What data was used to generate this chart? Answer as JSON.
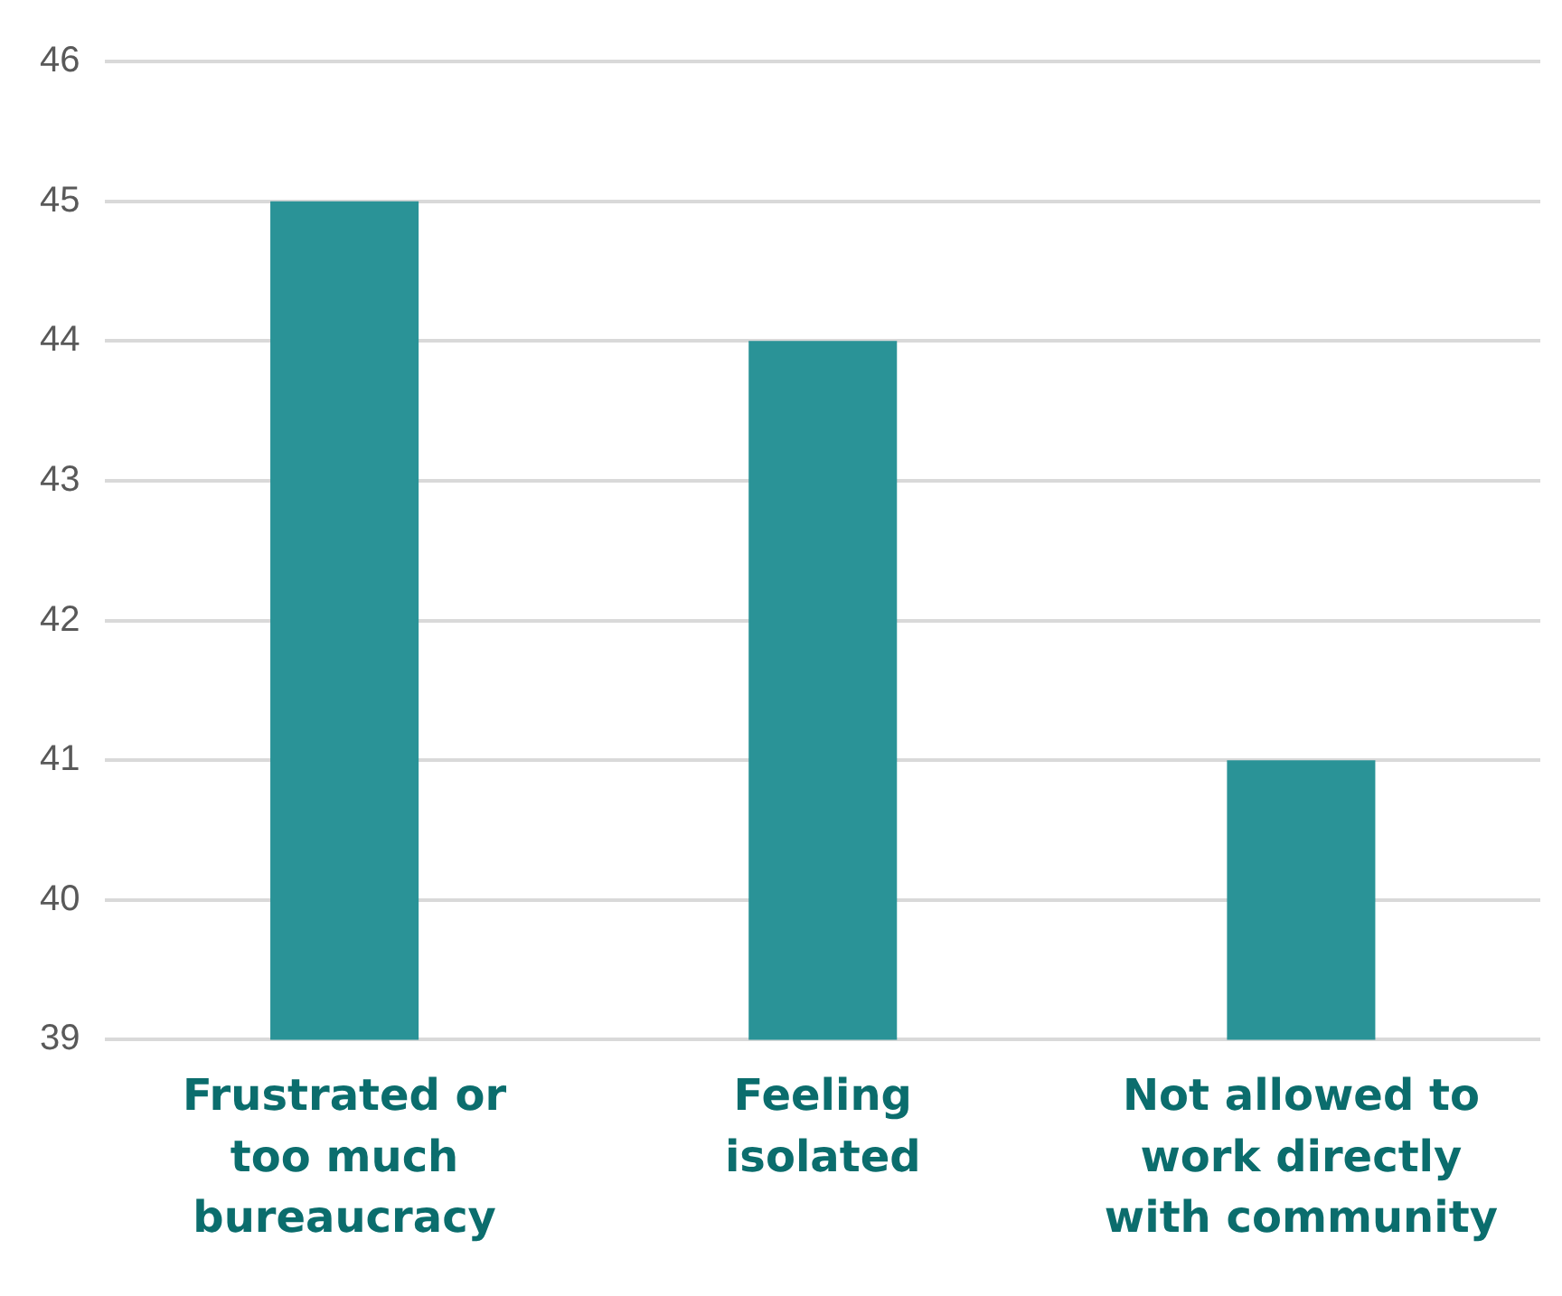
{
  "chart_data": {
    "type": "bar",
    "categories": [
      "Frustrated or too much bureaucracy",
      "Feeling isolated",
      "Not allowed to work directly with community"
    ],
    "values": [
      45,
      44,
      41
    ],
    "color": "#2a9397",
    "ylim": [
      39,
      46
    ],
    "yticks": [
      39,
      40,
      41,
      42,
      43,
      44,
      45,
      46
    ],
    "grid": "y",
    "legend": false
  }
}
